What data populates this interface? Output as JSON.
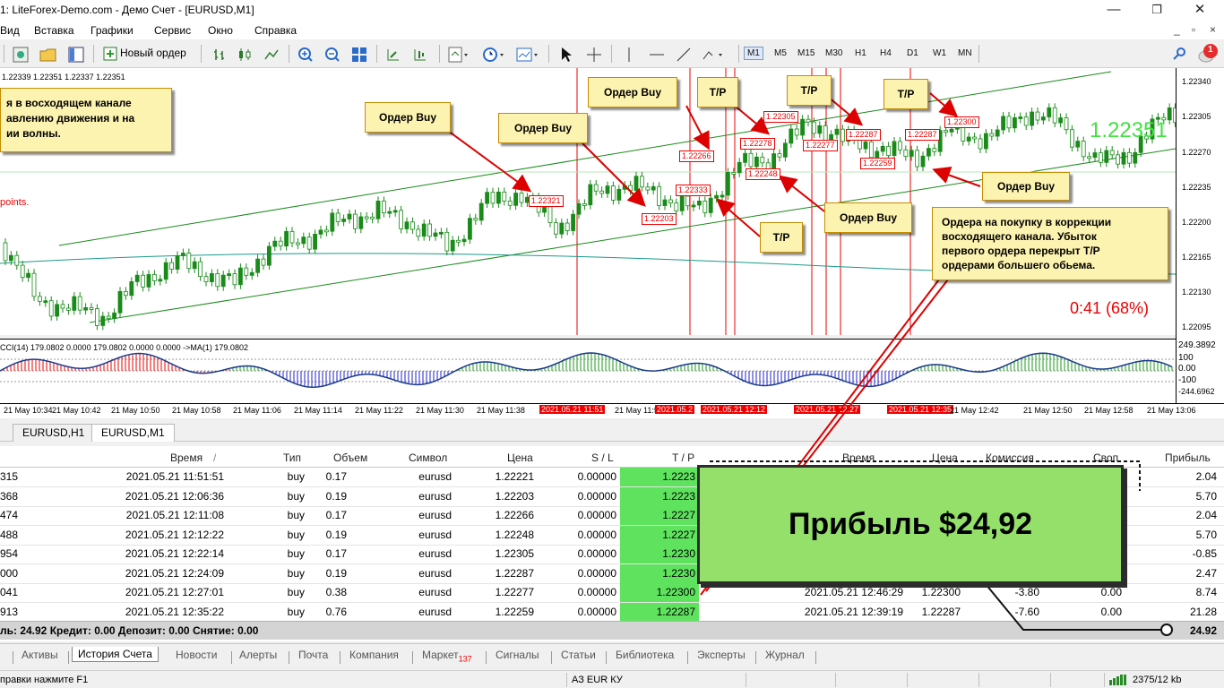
{
  "window": {
    "title": "1: LiteForex-Demo.com - Демо Счет - [EURUSD,M1]",
    "minimize_icon": "minimize-icon",
    "restore_icon": "restore-icon",
    "close_icon": "close-icon"
  },
  "menu": {
    "items": [
      "Вид",
      "Вставка",
      "Графики",
      "Сервис",
      "Окно",
      "Справка"
    ],
    "right_controls": [
      "_",
      "▫",
      "×"
    ]
  },
  "toolbar": {
    "new_order_label": "Новый ордер",
    "timeframes": [
      "M1",
      "M5",
      "M15",
      "M30",
      "H1",
      "H4",
      "D1",
      "W1",
      "MN"
    ],
    "selected_timeframe": "M1",
    "notification_count": "1"
  },
  "chart": {
    "quote_line": "1.22339 1.22351 1.22337 1.22351",
    "current_price_overlay": "1.22351",
    "timer": "0:41 (68%)",
    "points_text": "points.",
    "price_labels": [
      "1.22340",
      "1.22305",
      "1.22270",
      "1.22235",
      "1.22200",
      "1.22165",
      "1.22130",
      "1.22095"
    ],
    "indicator_labels": [
      "249.3892",
      "100",
      "0.00",
      "-100",
      "-244.6962"
    ],
    "indicator_line": "CCI(14) 179.0802 0.0000 179.0802 0.0000 0.0000  ->MA(1) 179.0802",
    "time_labels": [
      "21 May 10:34",
      "21 May 10:42",
      "21 May 10:50",
      "21 May 10:58",
      "21 May 11:06",
      "21 May 11:14",
      "21 May 11:22",
      "21 May 11:30",
      "21 May 11:38",
      "21 May 11:54",
      "21 May 12:42",
      "21 May 12:50",
      "21 May 12:58",
      "21 May 13:06"
    ],
    "red_time_labels": [
      "2021.05.21 11:51",
      "2021.05.2",
      "2021.05.21 12:12",
      "2021.05.21 12:27",
      "2021.05.21 12:35"
    ],
    "order_labels": [
      "1.22321",
      "1.22203",
      "1.22333",
      "1.22266",
      "1.22278",
      "1.22248",
      "1.22305",
      "1.22277",
      "1.22287",
      "1.22287",
      "1.22259",
      "1.22300"
    ]
  },
  "annotations": {
    "main_note": "я в восходящем канале\nавлению движения и на\nии волны.",
    "buy_label": "Ордер Buy",
    "tp_label": "T/P",
    "correction_note": "Ордера на покупку в коррекции\nвосходящего канала. Убыток\nпервого ордера перекрыт T/P\nордерами большего обьема.",
    "profit": "Прибыль $24,92"
  },
  "chart_tabs": [
    "EURUSD,H1",
    "EURUSD,M1"
  ],
  "active_chart_tab": "EURUSD,M1",
  "history_table": {
    "headers": {
      "time": "Время",
      "type": "Тип",
      "volume": "Объем",
      "symbol": "Символ",
      "price": "Цена",
      "sl": "S / L",
      "tp": "T / P",
      "close_time": "Время",
      "close_price": "Цена",
      "commission": "Комиссия",
      "swap": "Своп",
      "profit": "Прибыль"
    },
    "rows": [
      {
        "ticket": "315",
        "time": "2021.05.21 11:51:51",
        "type": "buy",
        "volume": "0.17",
        "symbol": "eurusd",
        "price": "1.22221",
        "sl": "0.00000",
        "tp": "1.2223",
        "close_time": "",
        "close_price": "",
        "commission": "",
        "swap": "",
        "profit": "2.04"
      },
      {
        "ticket": "368",
        "time": "2021.05.21 12:06:36",
        "type": "buy",
        "volume": "0.19",
        "symbol": "eurusd",
        "price": "1.22203",
        "sl": "0.00000",
        "tp": "1.2223",
        "close_time": "",
        "close_price": "",
        "commission": "",
        "swap": "",
        "profit": "5.70"
      },
      {
        "ticket": "474",
        "time": "2021.05.21 12:11:08",
        "type": "buy",
        "volume": "0.17",
        "symbol": "eurusd",
        "price": "1.22266",
        "sl": "0.00000",
        "tp": "1.2227",
        "close_time": "",
        "close_price": "",
        "commission": "",
        "swap": "",
        "profit": "2.04"
      },
      {
        "ticket": "488",
        "time": "2021.05.21 12:12:22",
        "type": "buy",
        "volume": "0.19",
        "symbol": "eurusd",
        "price": "1.22248",
        "sl": "0.00000",
        "tp": "1.2227",
        "close_time": "",
        "close_price": "",
        "commission": "",
        "swap": "",
        "profit": "5.70"
      },
      {
        "ticket": "954",
        "time": "2021.05.21 12:22:14",
        "type": "buy",
        "volume": "0.17",
        "symbol": "eurusd",
        "price": "1.22305",
        "sl": "0.00000",
        "tp": "1.2230",
        "close_time": "",
        "close_price": "",
        "commission": "",
        "swap": "",
        "profit": "-0.85"
      },
      {
        "ticket": "000",
        "time": "2021.05.21 12:24:09",
        "type": "buy",
        "volume": "0.19",
        "symbol": "eurusd",
        "price": "1.22287",
        "sl": "0.00000",
        "tp": "1.2230",
        "close_time": "",
        "close_price": "",
        "commission": "",
        "swap": "",
        "profit": "2.47"
      },
      {
        "ticket": "041",
        "time": "2021.05.21 12:27:01",
        "type": "buy",
        "volume": "0.38",
        "symbol": "eurusd",
        "price": "1.22277",
        "sl": "0.00000",
        "tp": "1.22300",
        "close_time": "2021.05.21 12:46:29",
        "close_price": "1.22300",
        "commission": "-3.80",
        "swap": "0.00",
        "profit": "8.74"
      },
      {
        "ticket": "913",
        "time": "2021.05.21 12:35:22",
        "type": "buy",
        "volume": "0.76",
        "symbol": "eurusd",
        "price": "1.22259",
        "sl": "0.00000",
        "tp": "1.22287",
        "close_time": "2021.05.21 12:39:19",
        "close_price": "1.22287",
        "commission": "-7.60",
        "swap": "0.00",
        "profit": "21.28"
      }
    ],
    "summary": "ль: 24.92  Кредит: 0.00  Депозит: 0.00  Снятие: 0.00",
    "summary_total": "24.92"
  },
  "bottom_tabs": [
    "Активы",
    "История Счета",
    "Новости",
    "Алерты",
    "Почта",
    "Компания",
    "Маркет",
    "Сигналы",
    "Статьи",
    "Библиотека",
    "Эксперты",
    "Журнал"
  ],
  "active_bottom_tab": "История Счета",
  "market_badge": "137",
  "status": {
    "help": "правки нажмите F1",
    "profile": "АЗ EUR КУ",
    "traffic": "2375/12 kb"
  }
}
